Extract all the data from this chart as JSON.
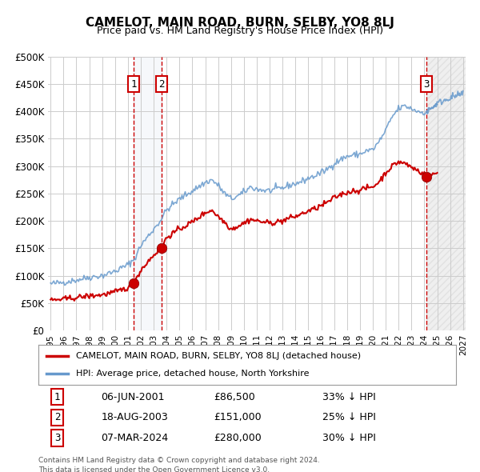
{
  "title": "CAMELOT, MAIN ROAD, BURN, SELBY, YO8 8LJ",
  "subtitle": "Price paid vs. HM Land Registry's House Price Index (HPI)",
  "xlabel": "",
  "ylabel": "",
  "ylim": [
    0,
    500000
  ],
  "yticks": [
    0,
    50000,
    100000,
    150000,
    200000,
    250000,
    300000,
    350000,
    400000,
    450000,
    500000
  ],
  "ytick_labels": [
    "£0",
    "£50K",
    "£100K",
    "£150K",
    "£200K",
    "£250K",
    "£300K",
    "£350K",
    "£400K",
    "£450K",
    "£500K"
  ],
  "x_start_year": 1995,
  "x_end_year": 2027,
  "xtick_years": [
    1995,
    1996,
    1997,
    1998,
    1999,
    2000,
    2001,
    2002,
    2003,
    2004,
    2005,
    2006,
    2007,
    2008,
    2009,
    2010,
    2011,
    2012,
    2013,
    2014,
    2015,
    2016,
    2017,
    2018,
    2019,
    2020,
    2021,
    2022,
    2023,
    2024,
    2025,
    2026,
    2027
  ],
  "line_color_red": "#cc0000",
  "line_color_blue": "#6699cc",
  "marker_color_red": "#cc0000",
  "grid_color": "#cccccc",
  "bg_color": "#ffffff",
  "sale1_x": 2001.44,
  "sale1_y": 86500,
  "sale1_label": "1",
  "sale1_date": "06-JUN-2001",
  "sale1_price": "£86,500",
  "sale1_hpi": "33% ↓ HPI",
  "sale2_x": 2003.63,
  "sale2_y": 151000,
  "sale2_label": "2",
  "sale2_date": "18-AUG-2003",
  "sale2_price": "£151,000",
  "sale2_hpi": "25% ↓ HPI",
  "sale3_x": 2024.18,
  "sale3_y": 280000,
  "sale3_label": "3",
  "sale3_date": "07-MAR-2024",
  "sale3_price": "£280,000",
  "sale3_hpi": "30% ↓ HPI",
  "legend_red_label": "CAMELOT, MAIN ROAD, BURN, SELBY, YO8 8LJ (detached house)",
  "legend_blue_label": "HPI: Average price, detached house, North Yorkshire",
  "footnote": "Contains HM Land Registry data © Crown copyright and database right 2024.\nThis data is licensed under the Open Government Licence v3.0.",
  "shade_between_x1": 2001.44,
  "shade_between_x2": 2003.63,
  "future_shade_x": 2024.18
}
